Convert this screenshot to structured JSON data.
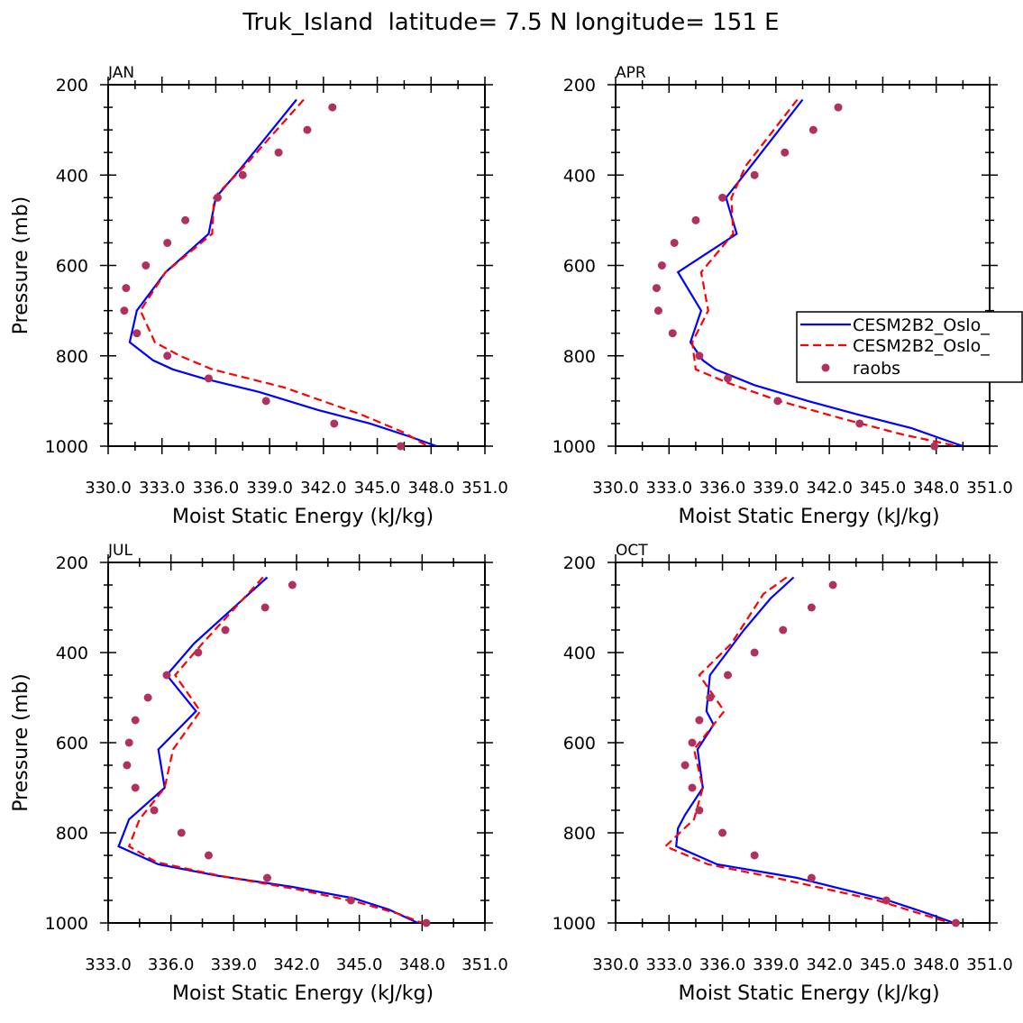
{
  "figure_title": "Truk_Island  latitude= 7.5 N longitude= 151 E",
  "legend": {
    "entries": [
      "CESM2B2_Oslo_",
      "CESM2B2_Oslo_",
      "raobs"
    ],
    "placement": "right-middle of APR panel"
  },
  "colors": {
    "model1": "#0000ff",
    "model2": "#ff0000",
    "obs": "#b03060"
  },
  "chart_data": [
    {
      "type": "line",
      "title": "JAN",
      "xlabel": "Moist Static Energy (kJ/kg)",
      "ylabel": "Pressure (mb)",
      "xlim": [
        330.0,
        351.0
      ],
      "ylim": [
        1000,
        200
      ],
      "xticklabels": [
        "330.0",
        "333.0",
        "336.0",
        "339.0",
        "342.0",
        "345.0",
        "348.0",
        "351.0"
      ],
      "yticks": [
        200,
        400,
        600,
        800,
        1000
      ],
      "series": [
        {
          "name": "CESM2B2_Oslo_",
          "style": "solid",
          "color": "#0000ff",
          "x": [
            340.5,
            337.5,
            336.0,
            335.6,
            333.2,
            331.6,
            331.2,
            332.5,
            333.6,
            335.3,
            338.4,
            341.7,
            344.6,
            346.9,
            348.3
          ],
          "y": [
            233,
            380,
            450,
            530,
            615,
            700,
            770,
            810,
            830,
            850,
            880,
            920,
            950,
            980,
            1000
          ]
        },
        {
          "name": "CESM2B2_Oslo_",
          "style": "dashed",
          "color": "#ff0000",
          "x": [
            340.9,
            337.6,
            335.9,
            335.8,
            333.2,
            331.8,
            332.6,
            334.0,
            335.8,
            339.8,
            344.1,
            346.5,
            347.8
          ],
          "y": [
            233,
            380,
            450,
            530,
            615,
            700,
            770,
            800,
            830,
            870,
            930,
            970,
            1000
          ]
        },
        {
          "name": "raobs",
          "style": "markers",
          "color": "#b03060",
          "x": [
            342.5,
            341.1,
            339.5,
            337.5,
            336.1,
            334.3,
            333.3,
            332.1,
            331.0,
            330.9,
            331.6,
            333.3,
            335.6,
            338.8,
            342.6,
            346.3
          ],
          "y": [
            250,
            300,
            350,
            400,
            450,
            500,
            550,
            600,
            650,
            700,
            750,
            800,
            850,
            900,
            950,
            1000
          ]
        }
      ]
    },
    {
      "type": "line",
      "title": "APR",
      "xlabel": "Moist Static Energy (kJ/kg)",
      "ylabel": "",
      "xlim": [
        330.0,
        351.0
      ],
      "ylim": [
        1000,
        200
      ],
      "xticklabels": [
        "330.0",
        "333.0",
        "336.0",
        "339.0",
        "342.0",
        "345.0",
        "348.0",
        "351.0"
      ],
      "yticks": [
        200,
        400,
        600,
        800,
        1000
      ],
      "series": [
        {
          "name": "CESM2B2_Oslo_",
          "style": "solid",
          "color": "#0000ff",
          "x": [
            340.5,
            337.6,
            336.2,
            336.8,
            333.5,
            334.8,
            334.2,
            334.9,
            335.6,
            337.8,
            340.8,
            343.6,
            346.6,
            348.4,
            349.5
          ],
          "y": [
            233,
            380,
            450,
            530,
            615,
            700,
            770,
            810,
            830,
            865,
            900,
            930,
            960,
            985,
            1000
          ]
        },
        {
          "name": "CESM2B2_Oslo_",
          "style": "dashed",
          "color": "#ff0000",
          "x": [
            340.2,
            337.3,
            336.5,
            336.6,
            334.8,
            335.2,
            334.3,
            334.5,
            336.3,
            339.2,
            342.8,
            346.2,
            349.2
          ],
          "y": [
            233,
            380,
            450,
            530,
            615,
            700,
            770,
            830,
            860,
            900,
            940,
            975,
            1000
          ]
        },
        {
          "name": "raobs",
          "style": "markers",
          "color": "#b03060",
          "x": [
            342.5,
            341.1,
            339.5,
            337.8,
            336.0,
            334.5,
            333.3,
            332.6,
            332.3,
            332.4,
            333.2,
            334.7,
            336.3,
            339.1,
            343.7,
            347.9
          ],
          "y": [
            250,
            300,
            350,
            400,
            450,
            500,
            550,
            600,
            650,
            700,
            750,
            800,
            850,
            900,
            950,
            1000
          ]
        }
      ]
    },
    {
      "type": "line",
      "title": "JUL",
      "xlabel": "Moist Static Energy (kJ/kg)",
      "ylabel": "Pressure (mb)",
      "xlim": [
        333.0,
        351.0
      ],
      "ylim": [
        1000,
        200
      ],
      "xticklabels": [
        "333.0",
        "336.0",
        "339.0",
        "342.0",
        "345.0",
        "348.0",
        "351.0"
      ],
      "yticks": [
        200,
        400,
        600,
        800,
        1000
      ],
      "series": [
        {
          "name": "CESM2B2_Oslo_",
          "style": "solid",
          "color": "#0000ff",
          "x": [
            340.6,
            337.1,
            335.8,
            337.2,
            335.4,
            335.7,
            334.0,
            333.5,
            335.4,
            338.2,
            341.8,
            344.7,
            346.4,
            347.8
          ],
          "y": [
            233,
            380,
            450,
            530,
            615,
            700,
            770,
            830,
            870,
            895,
            920,
            945,
            970,
            1000
          ]
        },
        {
          "name": "CESM2B2_Oslo_",
          "style": "dashed",
          "color": "#ff0000",
          "x": [
            340.4,
            337.5,
            336.2,
            337.4,
            336.1,
            335.7,
            334.5,
            334.0,
            335.3,
            338.3,
            342.0,
            345.0,
            346.9,
            348.0
          ],
          "y": [
            233,
            380,
            450,
            530,
            615,
            700,
            770,
            830,
            865,
            895,
            925,
            955,
            980,
            1000
          ]
        },
        {
          "name": "raobs",
          "style": "markers",
          "color": "#b03060",
          "x": [
            341.8,
            340.5,
            338.6,
            337.3,
            335.8,
            334.9,
            334.3,
            334.0,
            333.9,
            334.3,
            335.2,
            336.5,
            337.8,
            340.6,
            344.6,
            348.2
          ],
          "y": [
            250,
            300,
            350,
            400,
            450,
            500,
            550,
            600,
            650,
            700,
            750,
            800,
            850,
            900,
            950,
            1000
          ]
        }
      ]
    },
    {
      "type": "line",
      "title": "OCT",
      "xlabel": "Moist Static Energy (kJ/kg)",
      "ylabel": "",
      "xlim": [
        330.0,
        351.0
      ],
      "ylim": [
        1000,
        200
      ],
      "xticklabels": [
        "330.0",
        "333.0",
        "336.0",
        "339.0",
        "342.0",
        "345.0",
        "348.0",
        "351.0"
      ],
      "yticks": [
        200,
        400,
        600,
        800,
        1000
      ],
      "series": [
        {
          "name": "CESM2B2_Oslo_",
          "style": "solid",
          "color": "#0000ff",
          "x": [
            340.0,
            338.7,
            337.2,
            335.3,
            335.1,
            335.5,
            334.6,
            334.9,
            333.9,
            333.5,
            333.4,
            335.7,
            340.2,
            345.3,
            347.6,
            349.0
          ],
          "y": [
            233,
            280,
            350,
            450,
            530,
            560,
            615,
            700,
            760,
            790,
            830,
            870,
            900,
            950,
            980,
            1000
          ]
        },
        {
          "name": "CESM2B2_Oslo_",
          "style": "dashed",
          "color": "#ff0000",
          "x": [
            339.6,
            338.3,
            336.5,
            334.7,
            336.1,
            334.4,
            334.9,
            334.4,
            332.8,
            335.2,
            339.0,
            344.7,
            348.8
          ],
          "y": [
            233,
            270,
            380,
            450,
            530,
            615,
            700,
            770,
            830,
            870,
            900,
            950,
            1000
          ]
        },
        {
          "name": "raobs",
          "style": "markers",
          "color": "#b03060",
          "x": [
            342.2,
            341.0,
            339.4,
            337.8,
            336.3,
            335.3,
            334.7,
            334.3,
            333.9,
            334.3,
            334.7,
            336.0,
            337.8,
            341.0,
            345.2,
            349.1
          ],
          "y": [
            250,
            300,
            350,
            400,
            450,
            500,
            550,
            600,
            650,
            700,
            750,
            800,
            850,
            900,
            950,
            1000
          ]
        }
      ]
    }
  ]
}
